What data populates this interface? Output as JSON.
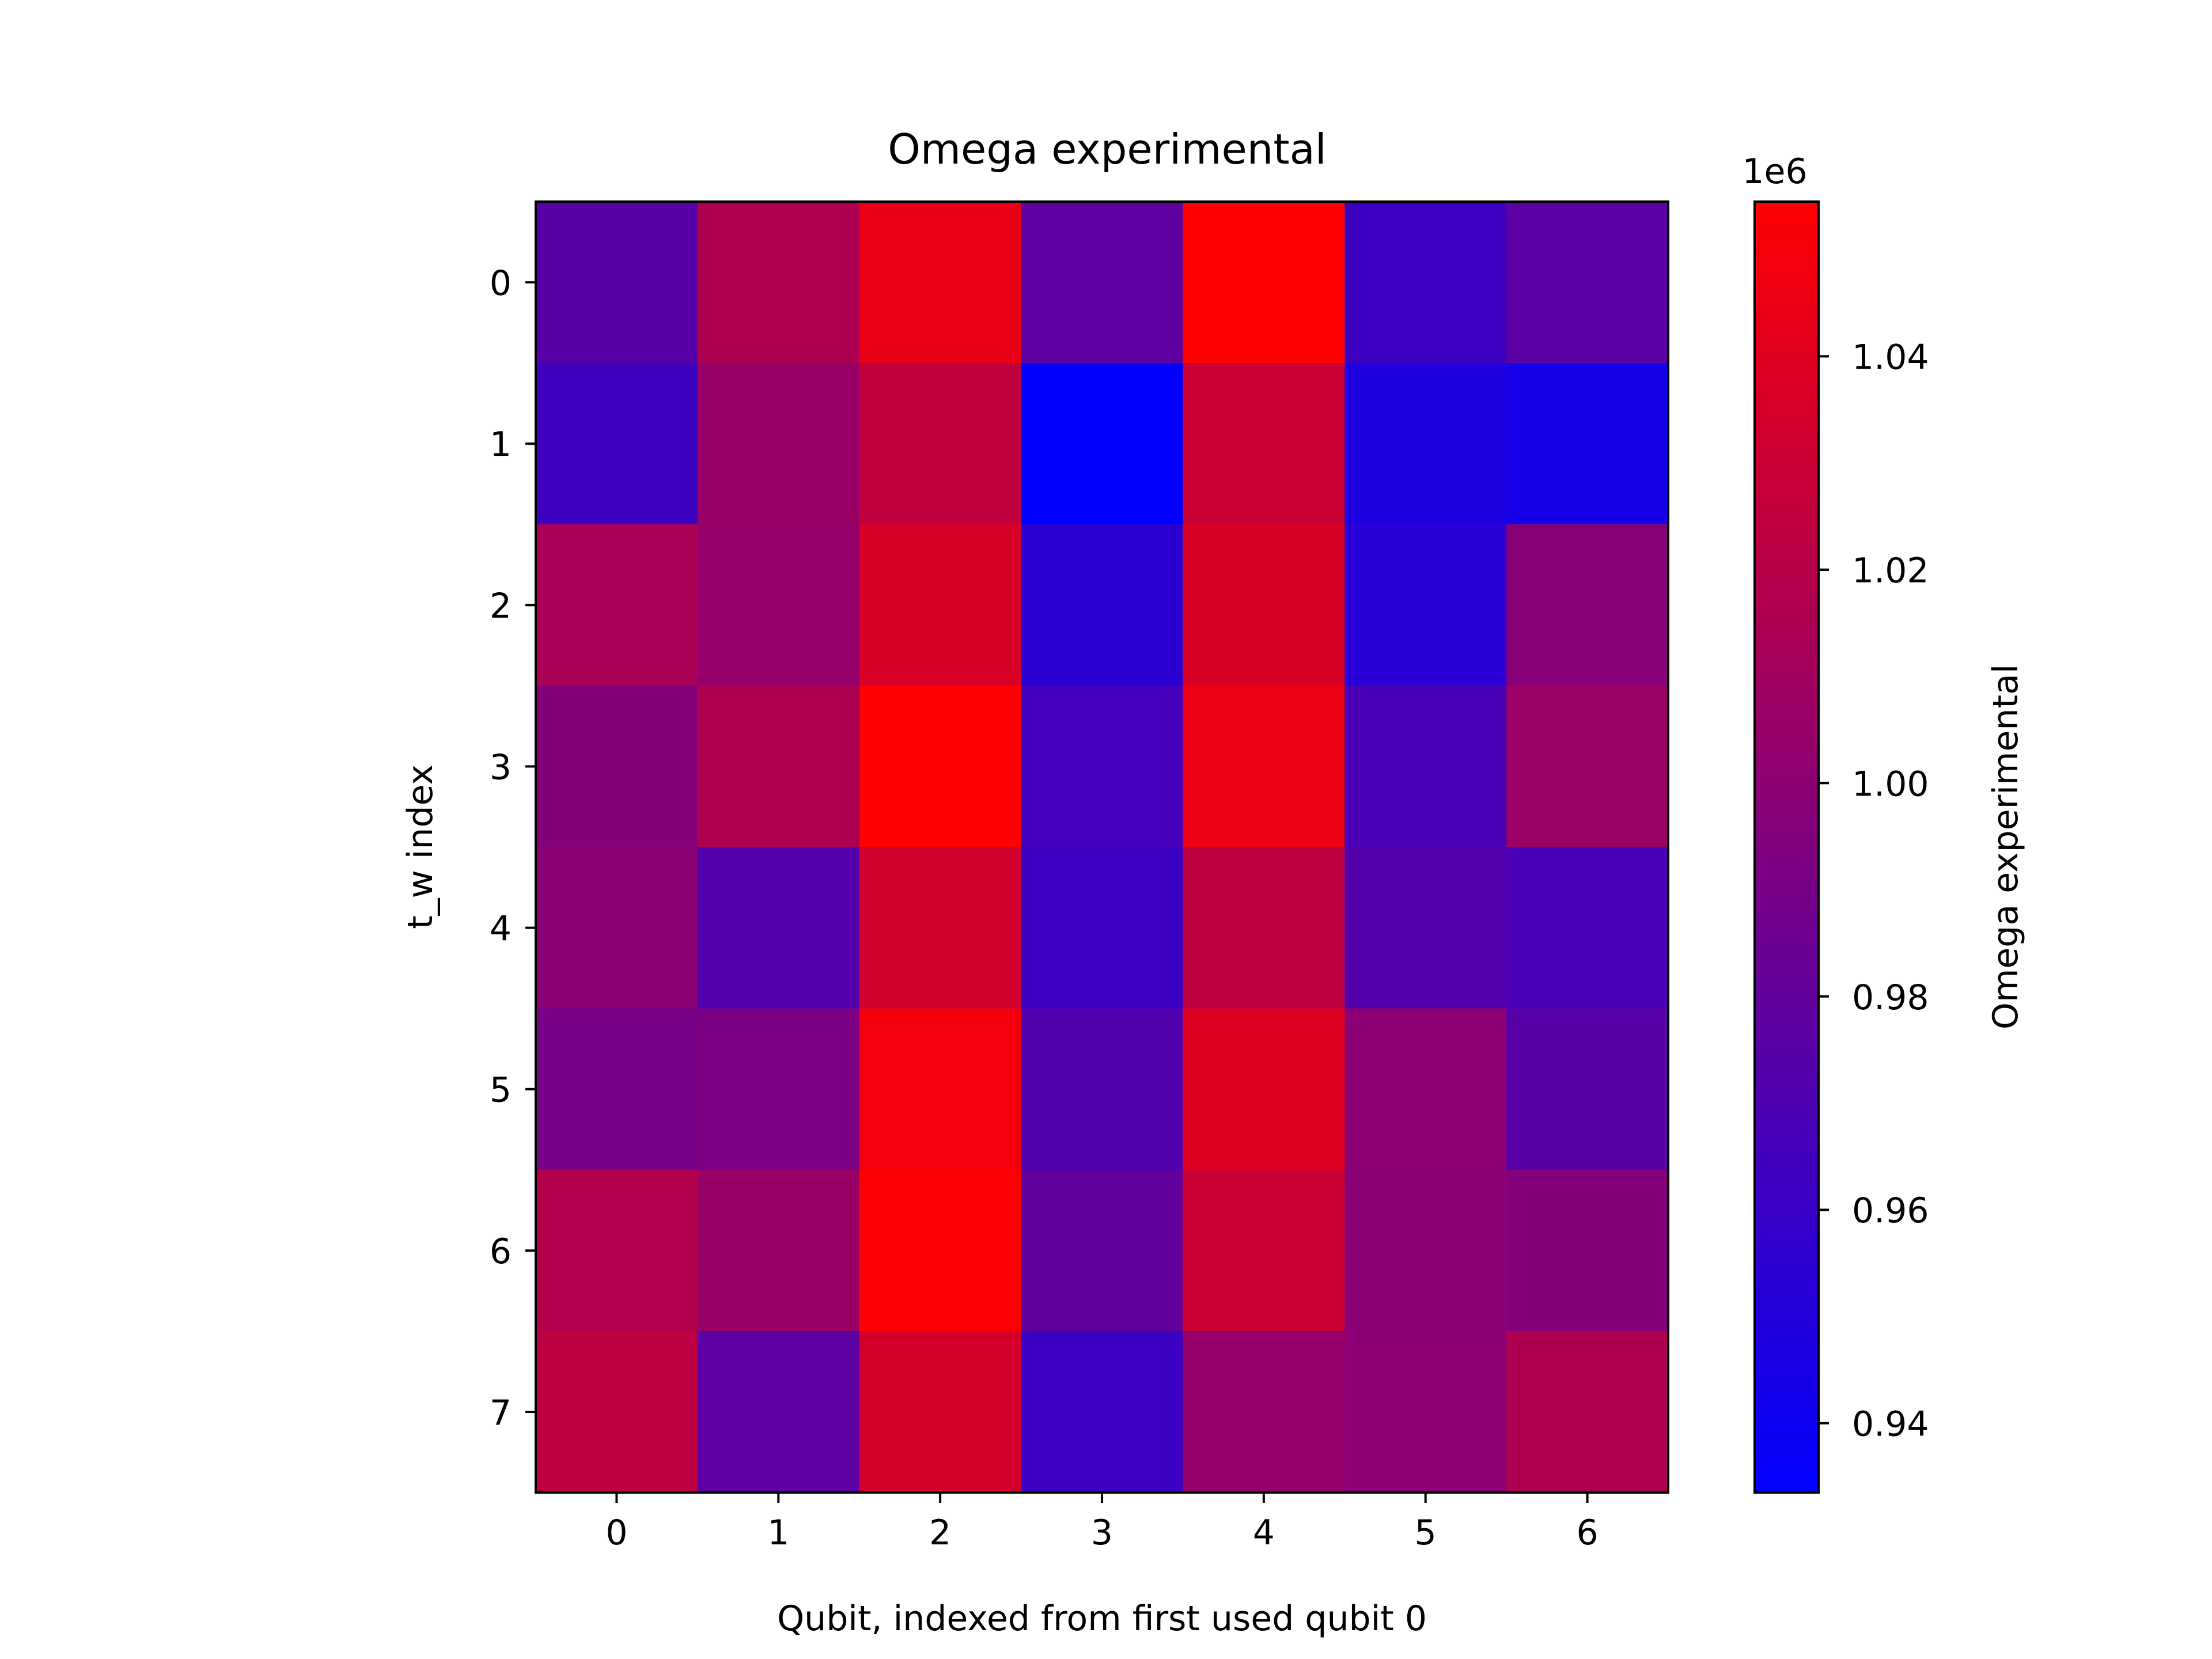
{
  "chart_data": {
    "type": "heatmap",
    "title": "Omega experimental",
    "xlabel": "Qubit, indexed from first used qubit 0",
    "ylabel": "t_w index",
    "x_ticks": [
      "0",
      "1",
      "2",
      "3",
      "4",
      "5",
      "6"
    ],
    "y_ticks": [
      "0",
      "1",
      "2",
      "3",
      "4",
      "5",
      "6",
      "7"
    ],
    "values": [
      [
        0.975,
        1.016,
        1.044,
        0.978,
        1.054,
        0.962,
        0.976
      ],
      [
        0.963,
        1.006,
        1.025,
        0.934,
        1.03,
        0.948,
        0.944
      ],
      [
        1.014,
        1.004,
        1.036,
        0.955,
        1.036,
        0.953,
        0.998
      ],
      [
        0.996,
        1.016,
        1.054,
        0.966,
        1.045,
        0.968,
        1.007
      ],
      [
        0.999,
        0.973,
        1.032,
        0.962,
        1.023,
        0.973,
        0.968
      ],
      [
        0.99,
        0.992,
        1.049,
        0.972,
        1.039,
        1.0,
        0.975
      ],
      [
        1.018,
        1.006,
        1.053,
        0.98,
        1.03,
        0.999,
        0.996
      ],
      [
        1.023,
        0.977,
        1.034,
        0.962,
        1.004,
        1.0,
        1.016
      ]
    ],
    "value_scale": "1e6",
    "colormap": [
      "#0000ff",
      "#ff0000"
    ],
    "colorbar": {
      "label": "Omega experimental",
      "offset_text": "1e6",
      "range": [
        0.9335,
        1.0545
      ],
      "ticks": [
        0.94,
        0.96,
        0.98,
        1.0,
        1.02,
        1.04
      ],
      "tick_labels": [
        "0.94",
        "0.96",
        "0.98",
        "1.00",
        "1.02",
        "1.04"
      ]
    },
    "grid": false,
    "legend": "none"
  }
}
